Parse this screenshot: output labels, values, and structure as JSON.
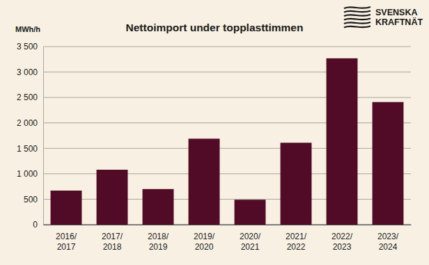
{
  "chart_data": {
    "type": "bar",
    "title": "Nettoimport under topplasttimmen",
    "ylabel": "MWh/h",
    "annotations": [
      "SVENSKA",
      "KRAFTNÄT"
    ],
    "categories": [
      "2016/2017",
      "2017/2018",
      "2018/2019",
      "2019/2020",
      "2020/2021",
      "2021/2022",
      "2022/2023",
      "2023/2024"
    ],
    "values": [
      670,
      1080,
      700,
      1690,
      490,
      1610,
      3270,
      2410
    ],
    "color": "#510b26",
    "ylim": [
      0,
      3500
    ],
    "yticks": [
      0,
      500,
      {
        "value": 1000,
        "label": "1 000"
      },
      {
        "value": 1500,
        "label": "1 500"
      },
      {
        "value": 2000,
        "label": "2 000"
      },
      {
        "value": 2500,
        "label": "2 500"
      },
      {
        "value": 3000,
        "label": "3 000"
      },
      {
        "value": 3500,
        "label": "3 500"
      }
    ],
    "grid": true
  }
}
